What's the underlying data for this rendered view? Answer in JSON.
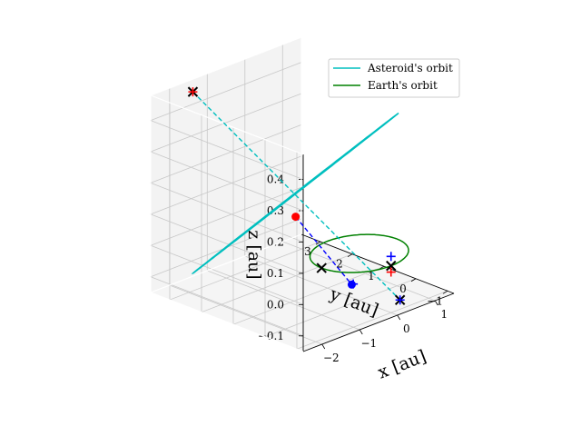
{
  "chart_data": {
    "type": "line",
    "projection": "3d",
    "xlabel": "$x$ [au]",
    "ylabel": "$y$ [au]",
    "zlabel": "$z$ [au]",
    "xlabel_text": "x [au]",
    "ylabel_text": "y [au]",
    "zlabel_text": "z [au]",
    "x_ticks": [
      "−2",
      "−1",
      "0",
      "1"
    ],
    "y_ticks": [
      "−1",
      "0",
      "1",
      "2",
      "3"
    ],
    "z_ticks": [
      "−0.1",
      "0.0",
      "0.1",
      "0.2",
      "0.3",
      "0.4"
    ],
    "xlim": [
      -2.5,
      1.5
    ],
    "ylim": [
      -1.2,
      3.6
    ],
    "zlim": [
      -0.15,
      0.48
    ],
    "grid": true,
    "legend_position": "top-right",
    "series": [
      {
        "name": "Asteroid's orbit",
        "color": "#00bfbf",
        "kind": "ellipse",
        "center": [
          -0.55,
          1.35,
          0.165
        ],
        "u_axis": [
          1.0,
          -2.05,
          0.29
        ],
        "v_axis": [
          0.13,
          0.07,
          0.0
        ]
      },
      {
        "name": "Earth's orbit",
        "color": "#008000",
        "kind": "circle",
        "center": [
          0,
          0,
          0
        ],
        "radius": 1.0
      }
    ],
    "markers": [
      {
        "kind": "x",
        "color": "#000000",
        "xyz": [
          -1.55,
          3.4,
          0.455
        ]
      },
      {
        "kind": "x",
        "color": "#000000",
        "xyz": [
          -1.0,
          0.0,
          0.0
        ]
      },
      {
        "kind": "x",
        "color": "#000000",
        "xyz": [
          0.0,
          -1.0,
          0.0
        ]
      },
      {
        "kind": "x",
        "color": "#000000",
        "xyz": [
          0.45,
          -0.75,
          -0.14
        ]
      },
      {
        "kind": "+",
        "color": "#ff0000",
        "xyz": [
          -1.55,
          3.4,
          0.455
        ]
      },
      {
        "kind": "+",
        "color": "#ff0000",
        "xyz": [
          0.0,
          -1.0,
          -0.02
        ]
      },
      {
        "kind": "+",
        "color": "#0000ff",
        "xyz": [
          0.0,
          -1.0,
          0.03
        ]
      },
      {
        "kind": "+",
        "color": "#0000ff",
        "xyz": [
          0.45,
          -0.75,
          -0.14
        ]
      },
      {
        "kind": "+",
        "color": "#0000ff",
        "xyz": [
          -0.16,
          0.0,
          -0.09
        ]
      },
      {
        "kind": "dot",
        "color": "#ff0000",
        "xyz": [
          -0.55,
          1.35,
          0.09
        ]
      },
      {
        "kind": "dot",
        "color": "#0000ff",
        "xyz": [
          -0.2,
          0.0,
          -0.09
        ]
      }
    ],
    "dashed_segments": [
      {
        "color": "#00bfbf",
        "from": [
          -1.55,
          3.4,
          0.455
        ],
        "to": [
          0.45,
          -0.75,
          -0.14
        ]
      },
      {
        "color": "#0000ff",
        "from": [
          -0.55,
          1.35,
          0.09
        ],
        "to": [
          -0.2,
          0.0,
          -0.09
        ]
      }
    ]
  }
}
